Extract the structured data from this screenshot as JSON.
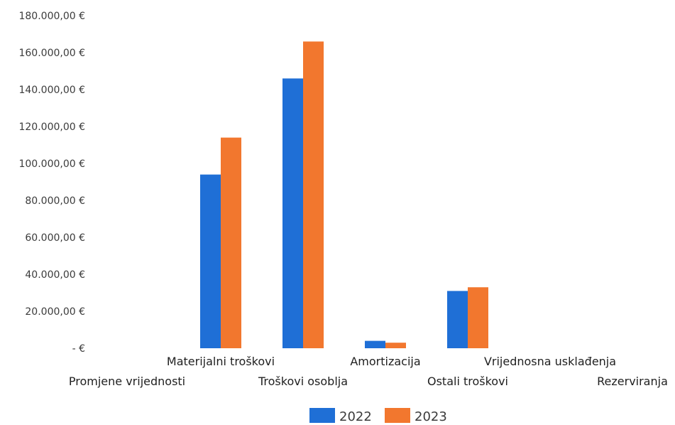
{
  "chart_data": {
    "type": "bar",
    "categories": [
      "Promjene vrijednosti",
      "Materijalni troškovi",
      "Troškovi osoblja",
      "Amortizacija",
      "Ostali troškovi",
      "Vrijednosna usklađenja",
      "Rezerviranja"
    ],
    "series": [
      {
        "name": "2022",
        "values": [
          0,
          94000,
          146000,
          4000,
          31000,
          0,
          0
        ]
      },
      {
        "name": "2023",
        "values": [
          0,
          114000,
          166000,
          3000,
          33000,
          0,
          0
        ]
      }
    ],
    "ylim": [
      0,
      180000
    ],
    "yticks": [
      0,
      20000,
      40000,
      60000,
      80000,
      100000,
      120000,
      140000,
      160000,
      180000
    ],
    "ytick_labels": [
      "-   €",
      "20.000,00 €",
      "40.000,00 €",
      "60.000,00 €",
      "80.000,00 €",
      "100.000,00 €",
      "120.000,00 €",
      "140.000,00 €",
      "160.000,00 €",
      "180.000,00 €"
    ],
    "grid": false,
    "legend_position": "bottom",
    "colors": {
      "2022": "#1f6fd6",
      "2023": "#f2772e"
    }
  }
}
